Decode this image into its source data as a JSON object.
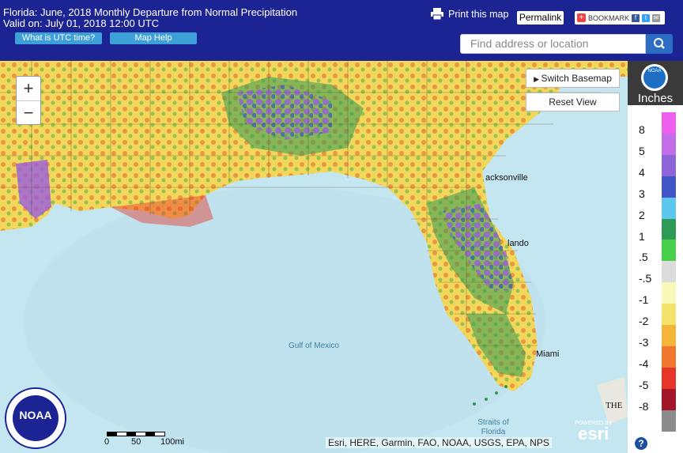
{
  "header": {
    "title_line1": "Florida: June, 2018 Monthly Departure from Normal Precipitation",
    "title_line2": "Valid on: July 01, 2018 12:00 UTC",
    "utc_button": "What is UTC time?",
    "maphelp_button": "Map Help",
    "print_label": "Print this map",
    "permalink_label": "Permalink",
    "bookmark_label": "BOOKMARK",
    "search_placeholder": "Find address or location"
  },
  "map": {
    "switch_basemap": "Switch Basemap",
    "reset_view": "Reset View",
    "zoom_in": "+",
    "zoom_out": "−",
    "labels": {
      "gulf": "Gulf of Mexico",
      "straits": "Straits of Florida",
      "jacksonville": "acksonville",
      "orlando": "lando",
      "miami": "Miami",
      "bahamas": "THE"
    },
    "scale": {
      "zero": "0",
      "mid": "50",
      "end": "100mi"
    },
    "attribution": "Esri, HERE, Garmin, FAO, NOAA, USGS, EPA, NPS",
    "esri_powered": "POWERED BY",
    "esri": "esri"
  },
  "legend": {
    "title": "Inches",
    "logo_text": "NOAA",
    "items": [
      {
        "label": "8",
        "color": "#ee5ff0"
      },
      {
        "label": "5",
        "color": "#c36de8"
      },
      {
        "label": "4",
        "color": "#8d65d8"
      },
      {
        "label": "3",
        "color": "#3f55c8"
      },
      {
        "label": "2",
        "color": "#5ec7f0"
      },
      {
        "label": "1",
        "color": "#2f9a55"
      },
      {
        "label": ".5",
        "color": "#49d04a"
      },
      {
        "label": "-.5",
        "color": "#dcdcdc"
      },
      {
        "label": "-1",
        "color": "#f8f8b8"
      },
      {
        "label": "-2",
        "color": "#f3e36a"
      },
      {
        "label": "-3",
        "color": "#f5b43a"
      },
      {
        "label": "-4",
        "color": "#f0782e"
      },
      {
        "label": "-5",
        "color": "#e7352a"
      },
      {
        "label": "-8",
        "color": "#a3162a"
      },
      {
        "label": "",
        "color": "#8c8c8c"
      }
    ],
    "help": "?"
  },
  "noaa_seal": "NOAA"
}
